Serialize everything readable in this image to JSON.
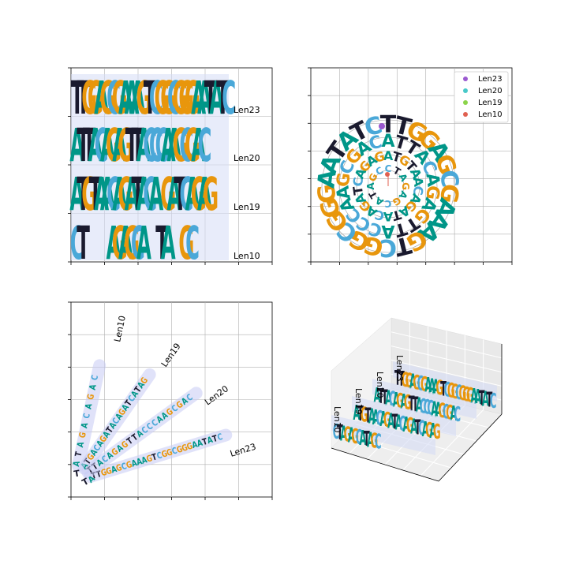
{
  "figure": {
    "panels": 4,
    "layout": "2x2"
  },
  "colors": {
    "A": "#009688",
    "C": "#4aa8d8",
    "G": "#e8960c",
    "T": "#1a1a2e",
    "highlight": "#d6dcf5",
    "grid": "#b0b0b0"
  },
  "chart_data": [
    {
      "type": "sequence-logo-stacked",
      "panel": "top-left",
      "grid": true,
      "labels_side": "right",
      "rows": [
        {
          "name": "Len23",
          "seq": "TTGGAGCGAAAGTCGGCGGGAATATC"
        },
        {
          "name": "Len20",
          "seq": "ATTACAGAGTTACCCAAGCGAC"
        },
        {
          "name": "Len19",
          "seq": "ATGTAACAGATACA GATCAGAG"
        },
        {
          "name": "Len10",
          "seq": "CT    AGAGCA  TA  GC"
        }
      ]
    },
    {
      "type": "sequence-logo-circular",
      "panel": "top-right",
      "grid": true,
      "legend": {
        "position": "top-right",
        "entries": [
          {
            "name": "Len23",
            "color": "#9b59d0"
          },
          {
            "name": "Len20",
            "color": "#48c9c9"
          },
          {
            "name": "Len19",
            "color": "#8bd44a"
          },
          {
            "name": "Len10",
            "color": "#e06050"
          }
        ]
      },
      "rings": [
        {
          "name": "Len23",
          "seq": "TTGGAGCGAAAGTCGGCGGGAATATC"
        },
        {
          "name": "Len20",
          "seq": "ATTACAGAGTTACCCAAGCGAC"
        },
        {
          "name": "Len19",
          "seq": "ATGTAACAGATACAGATCAGAG"
        },
        {
          "name": "Len10",
          "seq": "CTAGAGCATAGC"
        }
      ]
    },
    {
      "type": "sequence-logo-radial",
      "panel": "bottom-left",
      "grid": true,
      "rays": [
        {
          "name": "Len23",
          "seq": "TTGGAGCGAAAGTCGGCGGGAATATC"
        },
        {
          "name": "Len20",
          "seq": "TTACAGAGTTACCCAAGCGAC"
        },
        {
          "name": "Len19",
          "seq": "ATGACAGATACAGATCATAG"
        },
        {
          "name": "Len10",
          "seq": "ATAGACAGAC"
        }
      ]
    },
    {
      "type": "sequence-logo-3d",
      "panel": "bottom-right",
      "grid": true,
      "rows": [
        {
          "name": "Len23",
          "seq": "TTGGAGCGAAAGTCGGCGGGAATATC"
        },
        {
          "name": "Len20",
          "seq": "ATTACAGAGTTACCCAAGCGAC"
        },
        {
          "name": "Len19",
          "seq": "ATGTAACAGATACAGATCAGAG"
        },
        {
          "name": "Len10",
          "seq": "CTAGAGCATAGC"
        }
      ]
    }
  ]
}
